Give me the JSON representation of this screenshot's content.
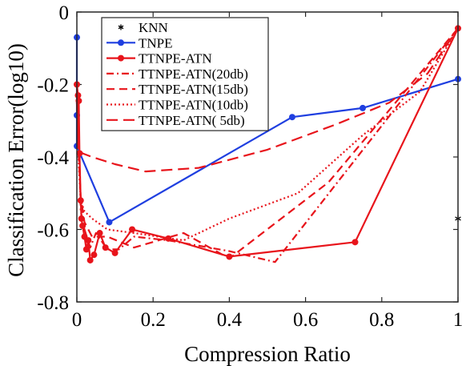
{
  "chart_data": {
    "type": "line",
    "xlabel": "Compression Ratio",
    "ylabel": "Classification Error(log10)",
    "xlim": [
      0,
      1
    ],
    "ylim": [
      -0.8,
      0
    ],
    "xticks": [
      0,
      0.2,
      0.4,
      0.6,
      0.8,
      1
    ],
    "xtick_labels": [
      "0",
      "0.2",
      "0.4",
      "0.6",
      "0.8",
      "1"
    ],
    "yticks": [
      0,
      -0.2,
      -0.4,
      -0.6,
      -0.8
    ],
    "ytick_labels": [
      "0",
      "-0.2",
      "-0.4",
      "-0.6",
      "-0.8"
    ],
    "grid": false,
    "legend_position": "top-left",
    "series": [
      {
        "name": "KNN",
        "color": "#000000",
        "style": "marker-star",
        "x": [
          1.0
        ],
        "y": [
          -0.57
        ]
      },
      {
        "name": "TNPE",
        "color": "#1f3fe0",
        "style": "solid-dot",
        "x": [
          0.0,
          0.0,
          0.0,
          0.085,
          0.565,
          0.75,
          1.0
        ],
        "y": [
          -0.07,
          -0.285,
          -0.37,
          -0.58,
          -0.29,
          -0.265,
          -0.185
        ]
      },
      {
        "name": "TTNPE-ATN",
        "color": "#e8141b",
        "style": "solid-dot",
        "x": [
          0.0,
          0.003,
          0.005,
          0.007,
          0.01,
          0.012,
          0.015,
          0.02,
          0.025,
          0.03,
          0.035,
          0.045,
          0.06,
          0.075,
          0.1,
          0.145,
          0.24,
          0.4,
          0.73,
          1.0
        ],
        "y": [
          -0.2,
          -0.23,
          -0.245,
          -0.39,
          -0.52,
          -0.57,
          -0.59,
          -0.62,
          -0.655,
          -0.63,
          -0.685,
          -0.67,
          -0.61,
          -0.65,
          -0.665,
          -0.6,
          -0.625,
          -0.675,
          -0.635,
          -0.045
        ]
      },
      {
        "name": "TTNPE-ATN(20db)",
        "color": "#e8141b",
        "style": "dash-dot",
        "x": [
          0.0,
          0.005,
          0.01,
          0.02,
          0.035,
          0.05,
          0.08,
          0.11,
          0.15,
          0.24,
          0.4,
          0.52,
          1.0
        ],
        "y": [
          -0.22,
          -0.33,
          -0.55,
          -0.6,
          -0.65,
          -0.61,
          -0.655,
          -0.655,
          -0.62,
          -0.63,
          -0.66,
          -0.69,
          -0.045
        ]
      },
      {
        "name": "TTNPE-ATN(15db)",
        "color": "#e8141b",
        "style": "dashed",
        "x": [
          0.0,
          0.005,
          0.01,
          0.02,
          0.04,
          0.08,
          0.15,
          0.28,
          0.4,
          0.66,
          1.0
        ],
        "y": [
          -0.25,
          -0.4,
          -0.51,
          -0.58,
          -0.62,
          -0.62,
          -0.65,
          -0.61,
          -0.68,
          -0.47,
          -0.045
        ]
      },
      {
        "name": "TTNPE-ATN(10db)",
        "color": "#e8141b",
        "style": "dotted",
        "x": [
          0.0,
          0.005,
          0.01,
          0.02,
          0.04,
          0.08,
          0.15,
          0.28,
          0.4,
          0.58,
          0.75,
          0.9,
          1.0
        ],
        "y": [
          -0.25,
          -0.42,
          -0.52,
          -0.55,
          -0.57,
          -0.6,
          -0.61,
          -0.63,
          -0.57,
          -0.5,
          -0.34,
          -0.22,
          -0.045
        ]
      },
      {
        "name": "TTNPE-ATN( 5db)",
        "color": "#e8141b",
        "style": "long-dash",
        "x": [
          0.0,
          0.003,
          0.007,
          0.015,
          0.04,
          0.1,
          0.18,
          0.32,
          0.5,
          0.68,
          0.82,
          0.92,
          1.0
        ],
        "y": [
          -0.2,
          -0.34,
          -0.38,
          -0.39,
          -0.4,
          -0.42,
          -0.44,
          -0.43,
          -0.38,
          -0.31,
          -0.25,
          -0.17,
          -0.045
        ]
      }
    ]
  }
}
